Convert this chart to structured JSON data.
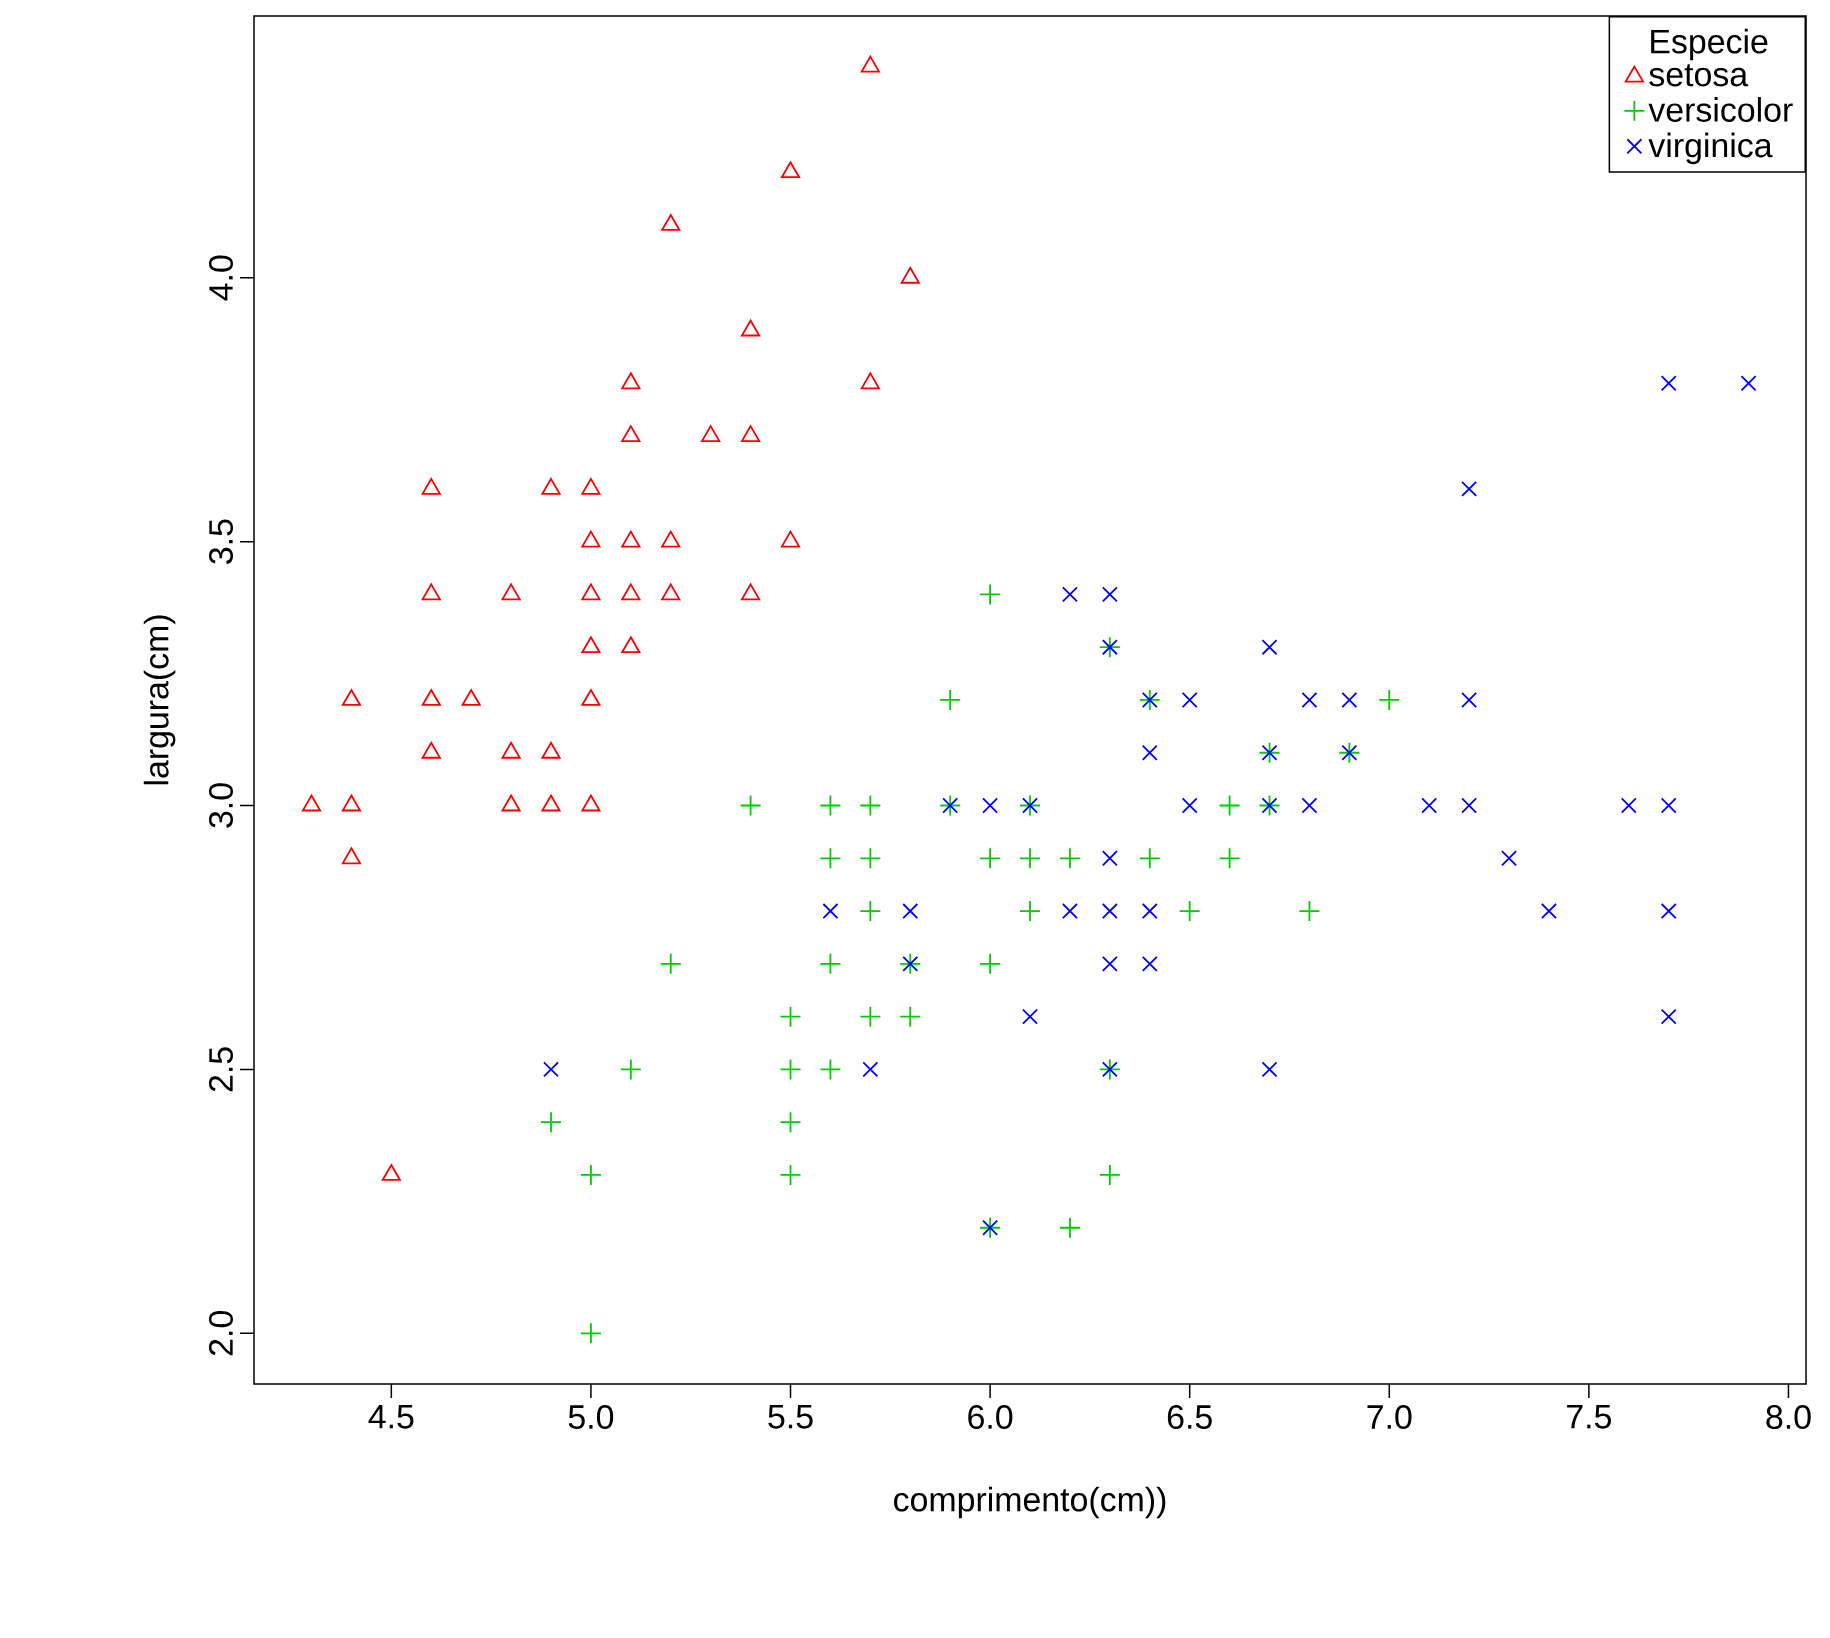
{
  "chart_data": {
    "type": "scatter",
    "xlabel": "comprimento(cm))",
    "ylabel": "largura(cm)",
    "legend_title": "Especie",
    "legend": "top right",
    "xlim": [
      4.156,
      8.044
    ],
    "ylim": [
      1.904,
      4.496
    ],
    "xticks": [
      {
        "value": 4.5,
        "label": "4.5"
      },
      {
        "value": 5.0,
        "label": "5.0"
      },
      {
        "value": 5.5,
        "label": "5.5"
      },
      {
        "value": 6.0,
        "label": "6.0"
      },
      {
        "value": 6.5,
        "label": "6.5"
      },
      {
        "value": 7.0,
        "label": "7.0"
      },
      {
        "value": 7.5,
        "label": "7.5"
      },
      {
        "value": 8.0,
        "label": "8.0"
      }
    ],
    "yticks": [
      {
        "value": 2.0,
        "label": "2.0"
      },
      {
        "value": 2.5,
        "label": "2.5"
      },
      {
        "value": 3.0,
        "label": "3.0"
      },
      {
        "value": 3.5,
        "label": "3.5"
      },
      {
        "value": 4.0,
        "label": "4.0"
      }
    ],
    "series": [
      {
        "name": "setosa",
        "color": "#ff0000",
        "marker": "triangle",
        "x": [
          5.1,
          4.9,
          4.7,
          4.6,
          5.0,
          5.4,
          4.6,
          5.0,
          4.4,
          4.9,
          5.4,
          4.8,
          4.8,
          4.3,
          5.8,
          5.7,
          5.7,
          5.1,
          5.4,
          5.1,
          4.6,
          5.1,
          5.0,
          5.2,
          5.2,
          4.8,
          5.2,
          5.5,
          5.0,
          5.5,
          4.9,
          4.4,
          5.1,
          5.0,
          4.5,
          4.4,
          4.6,
          5.3,
          5.0
        ],
        "values": [
          3.5,
          3.0,
          3.2,
          3.1,
          3.6,
          3.9,
          3.4,
          3.4,
          2.9,
          3.1,
          3.7,
          3.4,
          3.0,
          3.0,
          4.0,
          4.4,
          3.8,
          3.8,
          3.4,
          3.7,
          3.6,
          3.3,
          3.0,
          3.5,
          3.4,
          3.1,
          4.1,
          4.2,
          3.2,
          3.5,
          3.6,
          3.0,
          3.4,
          3.5,
          2.3,
          3.2,
          3.2,
          3.7,
          3.3
        ]
      },
      {
        "name": "versicolor",
        "color": "#00cd00",
        "marker": "plus",
        "x": [
          7.0,
          6.4,
          6.9,
          5.5,
          6.5,
          5.7,
          6.3,
          4.9,
          6.6,
          5.2,
          5.0,
          5.9,
          6.0,
          6.1,
          5.6,
          6.7,
          5.6,
          5.8,
          6.2,
          5.6,
          5.9,
          6.1,
          6.3,
          6.4,
          6.6,
          6.8,
          6.7,
          6.0,
          5.7,
          5.5,
          6.0,
          5.4,
          6.0,
          6.3,
          5.5,
          5.5,
          6.1,
          5.8,
          5.0,
          5.6,
          5.7,
          5.7,
          6.2,
          5.1
        ],
        "values": [
          3.2,
          3.2,
          3.1,
          2.3,
          2.8,
          2.8,
          3.3,
          2.4,
          2.9,
          2.7,
          2.0,
          3.0,
          2.2,
          2.9,
          2.9,
          3.1,
          3.0,
          2.7,
          2.2,
          2.5,
          3.2,
          2.8,
          2.5,
          2.9,
          3.0,
          2.8,
          3.0,
          2.9,
          2.6,
          2.4,
          2.7,
          3.0,
          3.4,
          2.3,
          2.5,
          2.6,
          3.0,
          2.6,
          2.3,
          2.7,
          3.0,
          2.9,
          2.9,
          2.5
        ]
      },
      {
        "name": "virginica",
        "color": "#0000ff",
        "marker": "cross",
        "x": [
          6.3,
          5.8,
          7.1,
          6.3,
          6.5,
          7.6,
          4.9,
          7.3,
          6.7,
          7.2,
          6.5,
          6.4,
          6.8,
          5.7,
          5.8,
          6.4,
          7.7,
          7.7,
          6.0,
          6.9,
          5.6,
          7.7,
          6.3,
          6.7,
          7.2,
          6.2,
          6.1,
          6.4,
          7.2,
          7.4,
          7.9,
          6.3,
          6.1,
          7.7,
          6.3,
          6.4,
          6.0,
          6.9,
          6.7,
          6.8,
          6.7,
          6.3,
          6.2,
          5.9
        ],
        "values": [
          3.3,
          2.7,
          3.0,
          2.9,
          3.0,
          3.0,
          2.5,
          2.9,
          2.5,
          3.6,
          3.2,
          2.7,
          3.0,
          2.5,
          2.8,
          3.2,
          3.8,
          2.6,
          2.2,
          3.2,
          2.8,
          2.8,
          2.7,
          3.3,
          3.2,
          2.8,
          3.0,
          2.8,
          3.0,
          2.8,
          3.8,
          2.8,
          2.6,
          3.0,
          3.4,
          3.1,
          3.0,
          3.1,
          3.1,
          3.2,
          3.0,
          2.5,
          3.4,
          3.0
        ]
      }
    ]
  }
}
